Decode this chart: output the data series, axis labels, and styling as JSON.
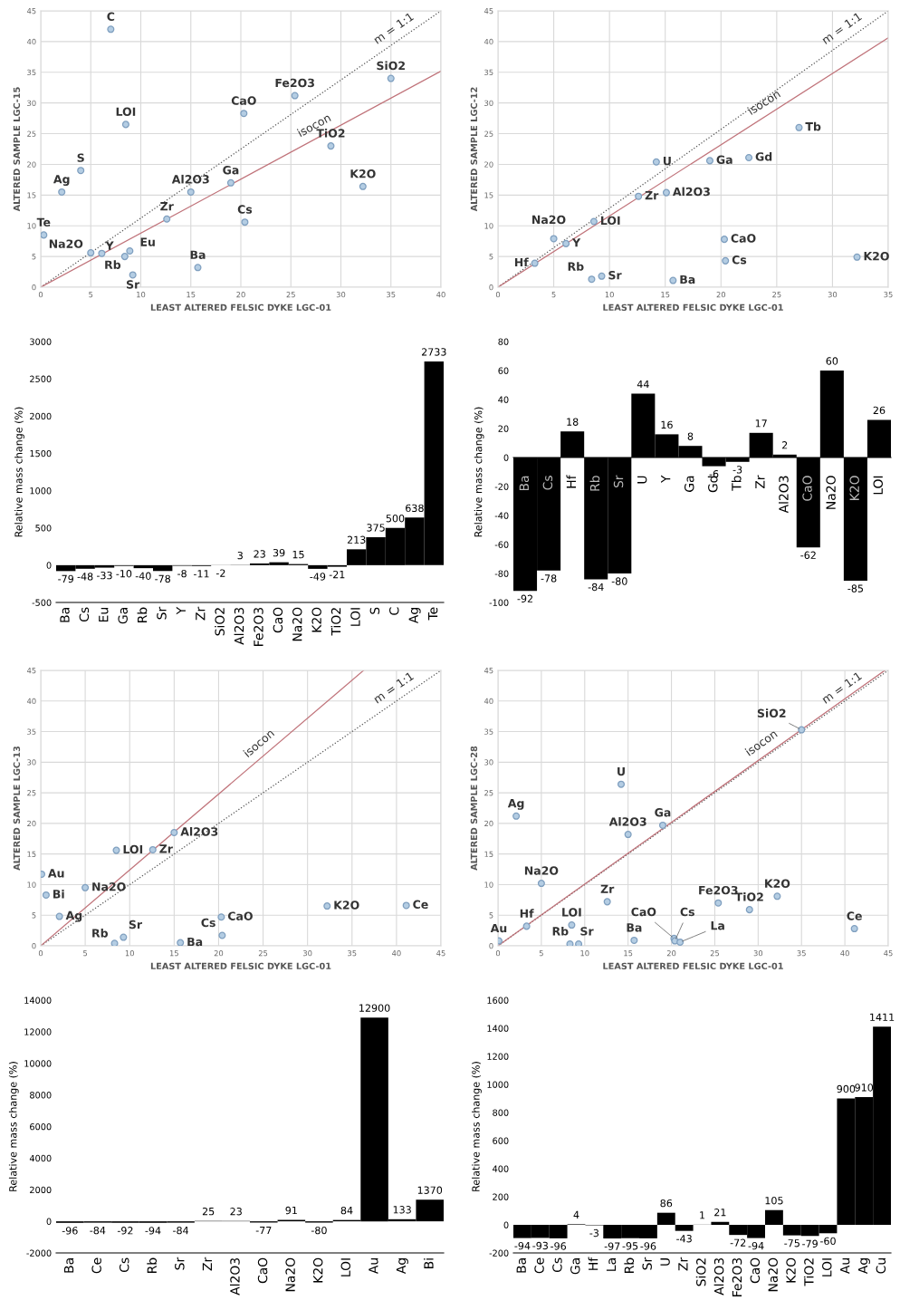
{
  "chart_data": [
    {
      "type": "scatter",
      "xlabel": "LEAST ALTERED FELSIC DYKE LGC-01",
      "ylabel": "ALTERED SAMPLE LGC-15",
      "xlim": [
        0,
        40
      ],
      "ylim": [
        0,
        45
      ],
      "xticks": [
        0,
        5,
        10,
        15,
        20,
        25,
        30,
        35,
        40
      ],
      "yticks": [
        0,
        5,
        10,
        15,
        20,
        25,
        30,
        35,
        40,
        45
      ],
      "grid": true,
      "series": [
        {
          "type": "scatter",
          "color": "#b4cde3",
          "marker": "circle",
          "x": [
            7,
            8.5,
            4,
            2.1,
            0.3,
            5,
            6.1,
            8.4,
            8.9,
            9.2,
            12.6,
            15,
            19,
            20.3,
            20.4,
            15.7,
            25.4,
            29,
            32.2,
            35
          ],
          "values": [
            42,
            26.5,
            19,
            15.5,
            8.5,
            5.6,
            5.5,
            5.0,
            5.9,
            2.0,
            11.1,
            15.5,
            17,
            28.3,
            10.6,
            3.2,
            31.2,
            23,
            16.4,
            34
          ]
        },
        {
          "type": "line",
          "name": "m = 1:1",
          "color": "#555555",
          "line_style": "dotted",
          "x": [
            0,
            40
          ],
          "values": [
            0,
            45
          ]
        },
        {
          "type": "line",
          "name": "isocon",
          "color": "#c0737a",
          "line_style": "solid",
          "x": [
            0,
            40
          ],
          "values": [
            0,
            35.2
          ]
        }
      ],
      "annotations": [
        {
          "text": "C",
          "x": 7,
          "y": 42
        },
        {
          "text": "LOI",
          "x": 8.5,
          "y": 26.5
        },
        {
          "text": "S",
          "x": 4,
          "y": 19
        },
        {
          "text": "Ag",
          "x": 2.1,
          "y": 15.5
        },
        {
          "text": "Te",
          "x": 0.3,
          "y": 8.5
        },
        {
          "text": "Na2O",
          "x": 5,
          "y": 5.6
        },
        {
          "text": "Y",
          "x": 6.1,
          "y": 5.5
        },
        {
          "text": "Rb",
          "x": 8.4,
          "y": 5.0
        },
        {
          "text": "Eu",
          "x": 8.9,
          "y": 5.9
        },
        {
          "text": "Sr",
          "x": 9.2,
          "y": 2.0
        },
        {
          "text": "Zr",
          "x": 12.6,
          "y": 11.1
        },
        {
          "text": "Al2O3",
          "x": 15,
          "y": 15.5
        },
        {
          "text": "Ga",
          "x": 19,
          "y": 17
        },
        {
          "text": "CaO",
          "x": 20.3,
          "y": 28.3
        },
        {
          "text": "Cs",
          "x": 20.4,
          "y": 10.6
        },
        {
          "text": "Ba",
          "x": 15.7,
          "y": 3.2
        },
        {
          "text": "Fe2O3",
          "x": 25.4,
          "y": 31.2
        },
        {
          "text": "TiO2",
          "x": 29,
          "y": 23
        },
        {
          "text": "K2O",
          "x": 32.2,
          "y": 16.4
        },
        {
          "text": "SiO2",
          "x": 35,
          "y": 34
        }
      ]
    },
    {
      "type": "scatter",
      "xlabel": "LEAST ALTERED FELSIC DYKE LGC-01",
      "ylabel": "ALTERED SAMPLE LGC-12",
      "xlim": [
        0,
        35
      ],
      "ylim": [
        0,
        45
      ],
      "xticks": [
        0,
        5,
        10,
        15,
        20,
        25,
        30,
        35
      ],
      "yticks": [
        0,
        5,
        10,
        15,
        20,
        25,
        30,
        35,
        40,
        45
      ],
      "grid": true,
      "series": [
        {
          "type": "scatter",
          "color": "#b4cde3",
          "marker": "circle",
          "x": [
            3.3,
            5,
            6.1,
            8.4,
            9.3,
            8.6,
            12.6,
            14.2,
            15.1,
            15.7,
            19,
            20.3,
            20.4,
            22.5,
            27,
            32.2
          ],
          "values": [
            3.9,
            7.9,
            7.1,
            1.3,
            1.8,
            10.7,
            14.8,
            20.4,
            15.4,
            1.1,
            20.6,
            7.8,
            4.3,
            21.1,
            26,
            4.9
          ]
        },
        {
          "type": "line",
          "name": "m = 1:1",
          "color": "#555555",
          "line_style": "dotted",
          "x": [
            0,
            35
          ],
          "values": [
            0,
            45
          ]
        },
        {
          "type": "line",
          "name": "isocon",
          "color": "#c0737a",
          "line_style": "solid",
          "x": [
            0,
            35
          ],
          "values": [
            0,
            40.6
          ]
        }
      ],
      "annotations": [
        {
          "text": "Hf",
          "x": 3.3,
          "y": 3.9
        },
        {
          "text": "Na2O",
          "x": 5,
          "y": 7.9
        },
        {
          "text": "Y",
          "x": 6.1,
          "y": 7.1
        },
        {
          "text": "Rb",
          "x": 8.4,
          "y": 1.3
        },
        {
          "text": "Sr",
          "x": 9.3,
          "y": 1.8
        },
        {
          "text": "LOI",
          "x": 8.6,
          "y": 10.7
        },
        {
          "text": "Zr",
          "x": 12.6,
          "y": 14.8
        },
        {
          "text": "U",
          "x": 14.2,
          "y": 20.4
        },
        {
          "text": "Al2O3",
          "x": 15.1,
          "y": 15.4
        },
        {
          "text": "Ba",
          "x": 15.7,
          "y": 1.1
        },
        {
          "text": "Ga",
          "x": 19,
          "y": 20.6
        },
        {
          "text": "CaO",
          "x": 20.3,
          "y": 7.8
        },
        {
          "text": "Cs",
          "x": 20.4,
          "y": 4.3
        },
        {
          "text": "Gd",
          "x": 22.5,
          "y": 21.1
        },
        {
          "text": "Tb",
          "x": 27,
          "y": 26
        },
        {
          "text": "K2O",
          "x": 32.2,
          "y": 4.9
        }
      ]
    },
    {
      "type": "bar",
      "ylabel": "Relative mass change (%)",
      "ylim": [
        -500,
        3000
      ],
      "yticks": [
        -500,
        0,
        500,
        1000,
        1500,
        2000,
        2500,
        3000
      ],
      "color": "#000000",
      "data_labels": true,
      "grid": false,
      "categories": [
        "Ba",
        "Cs",
        "Eu",
        "Ga",
        "Rb",
        "Sr",
        "Y",
        "Zr",
        "SiO2",
        "Al2O3",
        "Fe2O3",
        "CaO",
        "Na2O",
        "K2O",
        "TiO2",
        "LOI",
        "S",
        "C",
        "Ag",
        "Te"
      ],
      "values": [
        -79,
        -48,
        -33,
        -10,
        -40,
        -78,
        -8,
        -11,
        -2,
        3,
        23,
        39,
        15,
        -49,
        -21,
        213,
        375,
        500,
        638,
        2733
      ]
    },
    {
      "type": "bar",
      "ylabel": "Relative mass change (%)",
      "ylim": [
        -100,
        80
      ],
      "yticks": [
        -100,
        -80,
        -60,
        -40,
        -20,
        0,
        20,
        40,
        60,
        80
      ],
      "color": "#000000",
      "data_labels": true,
      "grid": false,
      "categories": [
        "Ba",
        "Cs",
        "Hf",
        "Rb",
        "Sr",
        "U",
        "Y",
        "Ga",
        "Gd",
        "Tb",
        "Zr",
        "Al2O3",
        "CaO",
        "Na2O",
        "K2O",
        "LOI"
      ],
      "values": [
        -92,
        -78,
        18,
        -84,
        -80,
        44,
        16,
        8,
        -6,
        -3,
        17,
        2,
        -62,
        60,
        -85,
        26
      ]
    },
    {
      "type": "scatter",
      "xlabel": "LEAST ALTERED FELSIC DYKE LGC-01",
      "ylabel": "ALTERED SAMPLE LGC-13",
      "xlim": [
        0,
        45
      ],
      "ylim": [
        0,
        45
      ],
      "xticks": [
        0,
        5,
        10,
        15,
        20,
        25,
        30,
        35,
        40,
        45
      ],
      "yticks": [
        0,
        5,
        10,
        15,
        20,
        25,
        30,
        35,
        40,
        45
      ],
      "grid": true,
      "series": [
        {
          "type": "scatter",
          "color": "#b4cde3",
          "marker": "circle",
          "x": [
            0.1,
            0.6,
            2.1,
            5,
            8.5,
            8.3,
            9.3,
            12.6,
            15,
            15.7,
            20.3,
            20.4,
            32.2,
            41.1
          ],
          "values": [
            11.7,
            8.3,
            4.8,
            9.5,
            15.6,
            0.4,
            1.4,
            15.7,
            18.5,
            0.5,
            4.7,
            1.7,
            6.5,
            6.6
          ]
        },
        {
          "type": "line",
          "name": "m = 1:1",
          "color": "#555555",
          "line_style": "dotted",
          "x": [
            0,
            45
          ],
          "values": [
            0,
            45
          ]
        },
        {
          "type": "line",
          "name": "isocon",
          "color": "#c0737a",
          "line_style": "solid",
          "x": [
            0,
            36.3
          ],
          "values": [
            0,
            45
          ]
        }
      ],
      "annotations": [
        {
          "text": "Au",
          "x": 0.1,
          "y": 11.7
        },
        {
          "text": "Bi",
          "x": 0.6,
          "y": 8.3
        },
        {
          "text": "Ag",
          "x": 2.1,
          "y": 4.8
        },
        {
          "text": "Na2O",
          "x": 5,
          "y": 9.5
        },
        {
          "text": "LOI",
          "x": 8.5,
          "y": 15.6
        },
        {
          "text": "Rb",
          "x": 8.3,
          "y": 0.4
        },
        {
          "text": "Sr",
          "x": 9.3,
          "y": 1.4
        },
        {
          "text": "Zr",
          "x": 12.6,
          "y": 15.7
        },
        {
          "text": "Al2O3",
          "x": 15,
          "y": 18.5
        },
        {
          "text": "Ba",
          "x": 15.7,
          "y": 0.5
        },
        {
          "text": "CaO",
          "x": 20.3,
          "y": 4.7
        },
        {
          "text": "Cs",
          "x": 20.4,
          "y": 1.7
        },
        {
          "text": "K2O",
          "x": 32.2,
          "y": 6.5
        },
        {
          "text": "Ce",
          "x": 41.1,
          "y": 6.6
        }
      ]
    },
    {
      "type": "scatter",
      "xlabel": "LEAST ALTERED FELSIC DYKE LGC-01",
      "ylabel": "ALTERED SAMPLE LGC-28",
      "xlim": [
        0,
        45
      ],
      "ylim": [
        0,
        45
      ],
      "xticks": [
        0,
        5,
        10,
        15,
        20,
        25,
        30,
        35,
        40,
        45
      ],
      "yticks": [
        0,
        5,
        10,
        15,
        20,
        25,
        30,
        35,
        40,
        45
      ],
      "grid": true,
      "series": [
        {
          "type": "scatter",
          "color": "#b4cde3",
          "marker": "circle",
          "x": [
            0.1,
            3.3,
            2.1,
            5,
            8.5,
            8.3,
            9.3,
            12.6,
            14.2,
            15,
            15.7,
            19,
            25.4,
            29,
            32.2,
            41.1,
            35,
            20.3,
            20.4,
            21
          ],
          "values": [
            0.8,
            3.2,
            21.2,
            10.2,
            3.4,
            0.3,
            0.3,
            7.2,
            26.4,
            18.2,
            0.9,
            19.7,
            7.0,
            5.9,
            8.1,
            2.8,
            35.3,
            1.2,
            0.8,
            0.6
          ]
        },
        {
          "type": "line",
          "name": "m = 1:1",
          "color": "#555555",
          "line_style": "dotted",
          "x": [
            0,
            45
          ],
          "values": [
            0,
            45
          ]
        },
        {
          "type": "line",
          "name": "isocon",
          "color": "#c0737a",
          "line_style": "solid",
          "x": [
            0,
            44.6
          ],
          "values": [
            0,
            45
          ]
        }
      ],
      "annotations": [
        {
          "text": "Au",
          "x": 0.1,
          "y": 0.8
        },
        {
          "text": "Hf",
          "x": 3.3,
          "y": 3.2
        },
        {
          "text": "Ag",
          "x": 2.1,
          "y": 21.2
        },
        {
          "text": "Na2O",
          "x": 5,
          "y": 10.2
        },
        {
          "text": "LOI",
          "x": 8.5,
          "y": 3.4
        },
        {
          "text": "Rb",
          "x": 8.3,
          "y": 0.3
        },
        {
          "text": "Sr",
          "x": 9.3,
          "y": 0.3
        },
        {
          "text": "Zr",
          "x": 12.6,
          "y": 7.2
        },
        {
          "text": "U",
          "x": 14.2,
          "y": 26.4
        },
        {
          "text": "Al2O3",
          "x": 15,
          "y": 18.2
        },
        {
          "text": "Ba",
          "x": 15.7,
          "y": 0.9
        },
        {
          "text": "Ga",
          "x": 19,
          "y": 19.7
        },
        {
          "text": "Fe2O3",
          "x": 25.4,
          "y": 7.0
        },
        {
          "text": "TiO2",
          "x": 29,
          "y": 5.9
        },
        {
          "text": "K2O",
          "x": 32.2,
          "y": 8.1
        },
        {
          "text": "Ce",
          "x": 41.1,
          "y": 2.8
        },
        {
          "text": "SiO2",
          "x": 35,
          "y": 35.3
        },
        {
          "text": "CaO",
          "x": 20.3,
          "y": 1.2
        },
        {
          "text": "Cs",
          "x": 20.4,
          "y": 0.8
        },
        {
          "text": "La",
          "x": 21,
          "y": 0.6
        }
      ]
    },
    {
      "type": "bar",
      "ylabel": "Relative mass change (%)",
      "ylim": [
        -2000,
        14000
      ],
      "yticks": [
        -2000,
        0,
        2000,
        4000,
        6000,
        8000,
        10000,
        12000,
        14000
      ],
      "color": "#000000",
      "data_labels": true,
      "grid": false,
      "categories": [
        "Ba",
        "Ce",
        "Cs",
        "Rb",
        "Sr",
        "Zr",
        "Al2O3",
        "CaO",
        "Na2O",
        "K2O",
        "LOI",
        "Au",
        "Ag",
        "Bi"
      ],
      "values": [
        -96,
        -84,
        -92,
        -94,
        -84,
        25,
        23,
        -77,
        91,
        -80,
        84,
        12900,
        133,
        1370
      ]
    },
    {
      "type": "bar",
      "ylabel": "Relative mass change (%)",
      "ylim": [
        -200,
        1600
      ],
      "yticks": [
        -200,
        0,
        200,
        400,
        600,
        800,
        1000,
        1200,
        1400,
        1600
      ],
      "color": "#000000",
      "data_labels": true,
      "grid": false,
      "categories": [
        "Ba",
        "Ce",
        "Cs",
        "Ga",
        "Hf",
        "La",
        "Rb",
        "Sr",
        "U",
        "Zr",
        "SiO2",
        "Al2O3",
        "Fe2O3",
        "CaO",
        "Na2O",
        "K2O",
        "TiO2",
        "LOI",
        "Au",
        "Ag",
        "Cu"
      ],
      "values": [
        -94,
        -93,
        -96,
        4,
        -3,
        -97,
        -95,
        -96,
        86,
        -43,
        1,
        21,
        -72,
        -94,
        105,
        -75,
        -79,
        -60,
        900,
        910,
        1411
      ]
    }
  ]
}
